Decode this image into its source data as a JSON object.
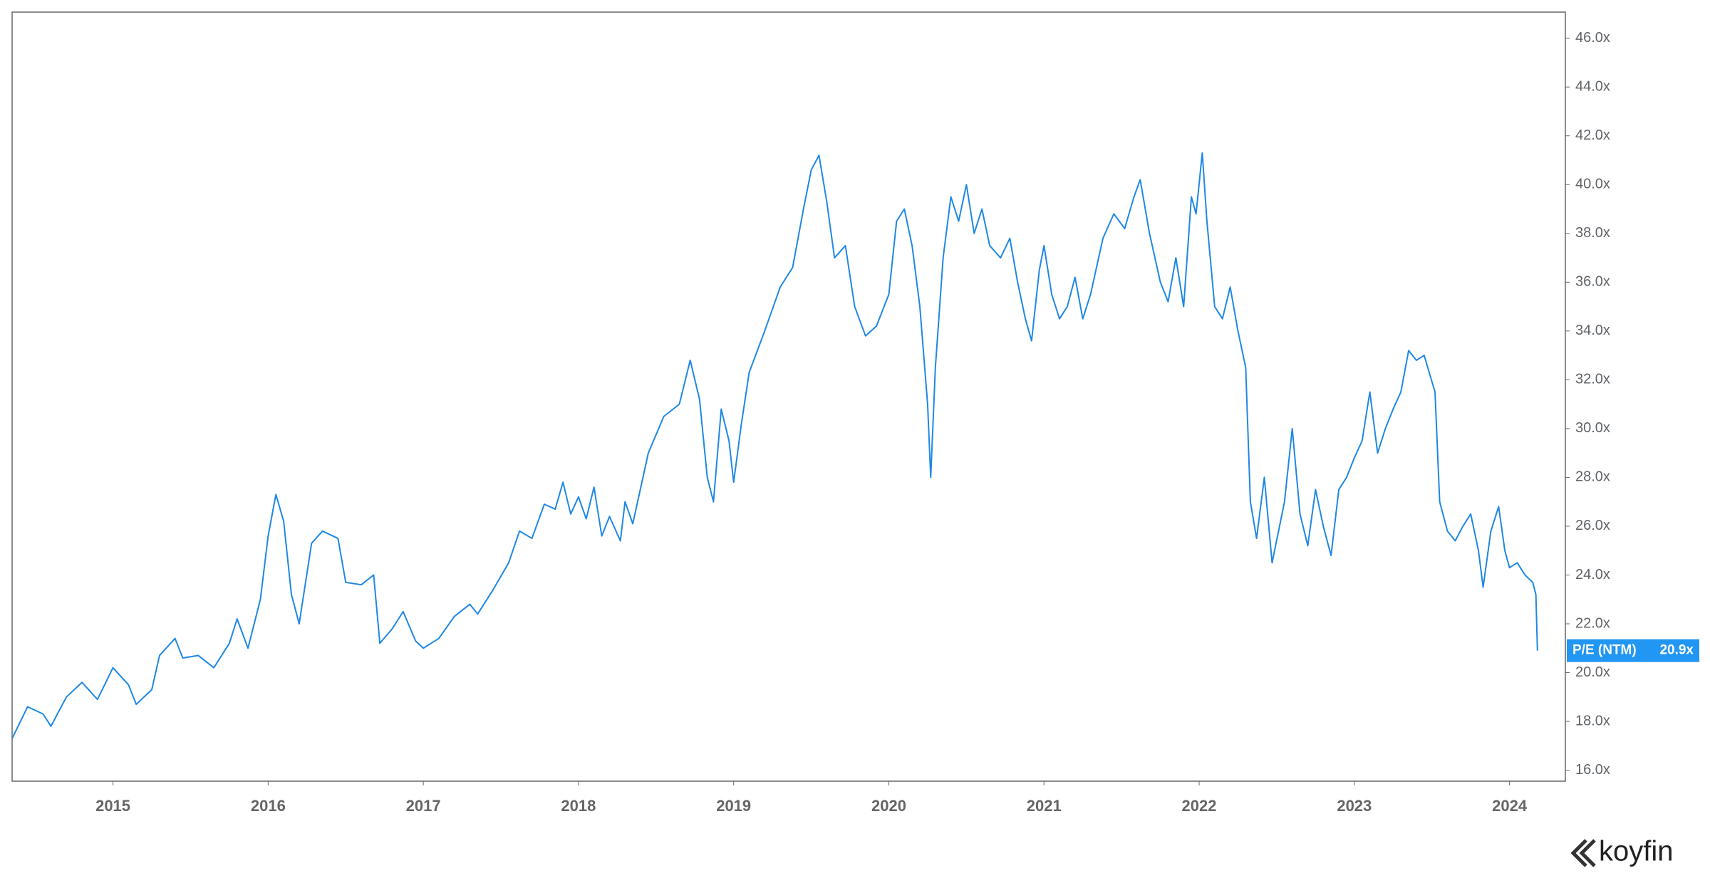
{
  "chart_data": {
    "type": "line",
    "brand": "koyfin",
    "x": [
      2014.35,
      2014.45,
      2014.55,
      2014.6,
      2014.7,
      2014.8,
      2014.9,
      2015.0,
      2015.1,
      2015.15,
      2015.25,
      2015.3,
      2015.4,
      2015.45,
      2015.55,
      2015.65,
      2015.75,
      2015.8,
      2015.87,
      2015.95,
      2016.0,
      2016.05,
      2016.1,
      2016.15,
      2016.2,
      2016.28,
      2016.35,
      2016.45,
      2016.5,
      2016.6,
      2016.68,
      2016.72,
      2016.8,
      2016.87,
      2016.95,
      2017.0,
      2017.1,
      2017.2,
      2017.3,
      2017.35,
      2017.45,
      2017.55,
      2017.62,
      2017.7,
      2017.78,
      2017.85,
      2017.9,
      2017.95,
      2018.0,
      2018.05,
      2018.1,
      2018.15,
      2018.2,
      2018.27,
      2018.3,
      2018.35,
      2018.45,
      2018.55,
      2018.65,
      2018.72,
      2018.78,
      2018.83,
      2018.87,
      2018.92,
      2018.97,
      2019.0,
      2019.05,
      2019.1,
      2019.2,
      2019.3,
      2019.38,
      2019.45,
      2019.5,
      2019.55,
      2019.6,
      2019.65,
      2019.72,
      2019.78,
      2019.85,
      2019.92,
      2020.0,
      2020.05,
      2020.1,
      2020.15,
      2020.2,
      2020.25,
      2020.27,
      2020.3,
      2020.35,
      2020.4,
      2020.45,
      2020.5,
      2020.55,
      2020.6,
      2020.65,
      2020.72,
      2020.78,
      2020.83,
      2020.88,
      2020.92,
      2020.97,
      2021.0,
      2021.05,
      2021.1,
      2021.15,
      2021.2,
      2021.25,
      2021.3,
      2021.38,
      2021.45,
      2021.52,
      2021.58,
      2021.62,
      2021.68,
      2021.75,
      2021.8,
      2021.85,
      2021.9,
      2021.95,
      2021.98,
      2022.02,
      2022.05,
      2022.1,
      2022.15,
      2022.2,
      2022.25,
      2022.3,
      2022.33,
      2022.37,
      2022.42,
      2022.47,
      2022.55,
      2022.6,
      2022.65,
      2022.7,
      2022.75,
      2022.8,
      2022.85,
      2022.9,
      2022.95,
      2023.0,
      2023.05,
      2023.1,
      2023.15,
      2023.2,
      2023.25,
      2023.3,
      2023.35,
      2023.4,
      2023.45,
      2023.52,
      2023.55,
      2023.6,
      2023.65,
      2023.7,
      2023.75,
      2023.8,
      2023.83,
      2023.88,
      2023.93,
      2023.97,
      2024.0,
      2024.05,
      2024.1,
      2024.15,
      2024.17,
      2024.18
    ],
    "series": [
      {
        "name": "P/E (NTM)",
        "color": "#1e88e5",
        "values": [
          17.3,
          18.6,
          18.3,
          17.8,
          19.0,
          19.6,
          18.9,
          20.2,
          19.5,
          18.7,
          19.3,
          20.7,
          21.4,
          20.6,
          20.7,
          20.2,
          21.2,
          22.2,
          21.0,
          23.0,
          25.6,
          27.3,
          26.2,
          23.2,
          22.0,
          25.3,
          25.8,
          25.5,
          23.7,
          23.6,
          24.0,
          21.2,
          21.8,
          22.5,
          21.3,
          21.0,
          21.4,
          22.3,
          22.8,
          22.4,
          23.4,
          24.5,
          25.8,
          25.5,
          26.9,
          26.7,
          27.8,
          26.5,
          27.2,
          26.3,
          27.6,
          25.6,
          26.4,
          25.4,
          27.0,
          26.1,
          29.0,
          30.5,
          31.0,
          32.8,
          31.2,
          28.0,
          27.0,
          30.8,
          29.5,
          27.8,
          30.2,
          32.3,
          34.0,
          35.8,
          36.6,
          39.0,
          40.6,
          41.2,
          39.3,
          37.0,
          37.5,
          35.0,
          33.8,
          34.2,
          35.5,
          38.5,
          39.0,
          37.5,
          35.0,
          31.0,
          28.0,
          32.5,
          37.0,
          39.5,
          38.5,
          40.0,
          38.0,
          39.0,
          37.5,
          37.0,
          37.8,
          36.0,
          34.5,
          33.6,
          36.5,
          37.5,
          35.5,
          34.5,
          35.0,
          36.2,
          34.5,
          35.5,
          37.8,
          38.8,
          38.2,
          39.5,
          40.2,
          38.0,
          36.0,
          35.2,
          37.0,
          35.0,
          39.5,
          38.8,
          41.3,
          38.5,
          35.0,
          34.5,
          35.8,
          34.0,
          32.5,
          27.0,
          25.5,
          28.0,
          24.5,
          27.0,
          30.0,
          26.5,
          25.2,
          27.5,
          26.0,
          24.8,
          27.5,
          28.0,
          28.8,
          29.5,
          31.5,
          29.0,
          30.0,
          30.8,
          31.5,
          33.2,
          32.8,
          33.0,
          31.5,
          27.0,
          25.8,
          25.4,
          26.0,
          26.5,
          25.0,
          23.5,
          25.8,
          26.8,
          25.0,
          24.3,
          24.5,
          24.0,
          23.7,
          23.2,
          20.9
        ],
        "value_labels": [
          null,
          null,
          null,
          null,
          null,
          null,
          null,
          null,
          null,
          null,
          null,
          null,
          null,
          null,
          null,
          null,
          null,
          null,
          null,
          null,
          null,
          null,
          null,
          null,
          null,
          null,
          null,
          null,
          null,
          null,
          null,
          null,
          null,
          null,
          null,
          null,
          null,
          null,
          null,
          null,
          null,
          null,
          null,
          null,
          null,
          null,
          null,
          null,
          null,
          null,
          null,
          null,
          null,
          null,
          null,
          null,
          null,
          null,
          null,
          null,
          null,
          null,
          null,
          null,
          null,
          null,
          null,
          null,
          null,
          null,
          null,
          null,
          null,
          null,
          null,
          null,
          null,
          null,
          null,
          null,
          null,
          null,
          null,
          null,
          null,
          null,
          null,
          null,
          null,
          null,
          null,
          null,
          null,
          null,
          null,
          null,
          null,
          null,
          null,
          null,
          null,
          null,
          null,
          null,
          null,
          null,
          null,
          null,
          null,
          null,
          null,
          null,
          null,
          null,
          null,
          null,
          null,
          null,
          null,
          null,
          null,
          null,
          null,
          null,
          null,
          null,
          null,
          null,
          null,
          null,
          null,
          null,
          null,
          null,
          null,
          null,
          null,
          null,
          null,
          null,
          null,
          null,
          null,
          null,
          null,
          null,
          null,
          null,
          null,
          null,
          null,
          null,
          null,
          null,
          null,
          null,
          null,
          null,
          null,
          null,
          null,
          null,
          null,
          null,
          null,
          null,
          "20.9x"
        ]
      }
    ],
    "xlim": [
      2014.35,
      2024.36
    ],
    "xticks": [
      2015,
      2016,
      2017,
      2018,
      2019,
      2020,
      2021,
      2022,
      2023,
      2024
    ],
    "ylim": [
      15.55,
      47.07
    ],
    "yticks": [
      {
        "value": 16,
        "label": "16.0x"
      },
      {
        "value": 18,
        "label": "18.0x"
      },
      {
        "value": 20,
        "label": "20.0x"
      },
      {
        "value": 22,
        "label": "22.0x"
      },
      {
        "value": 24,
        "label": "24.0x"
      },
      {
        "value": 26,
        "label": "26.0x"
      },
      {
        "value": 28,
        "label": "28.0x"
      },
      {
        "value": 30,
        "label": "30.0x"
      },
      {
        "value": 32,
        "label": "32.0x"
      },
      {
        "value": 34,
        "label": "34.0x"
      },
      {
        "value": 36,
        "label": "36.0x"
      },
      {
        "value": 38,
        "label": "38.0x"
      },
      {
        "value": 40,
        "label": "40.0x"
      },
      {
        "value": 42,
        "label": "42.0x"
      },
      {
        "value": 44,
        "label": "44.0x"
      },
      {
        "value": 46,
        "label": "46.0x"
      }
    ],
    "grid": false,
    "badge_color": "#2196f3"
  }
}
